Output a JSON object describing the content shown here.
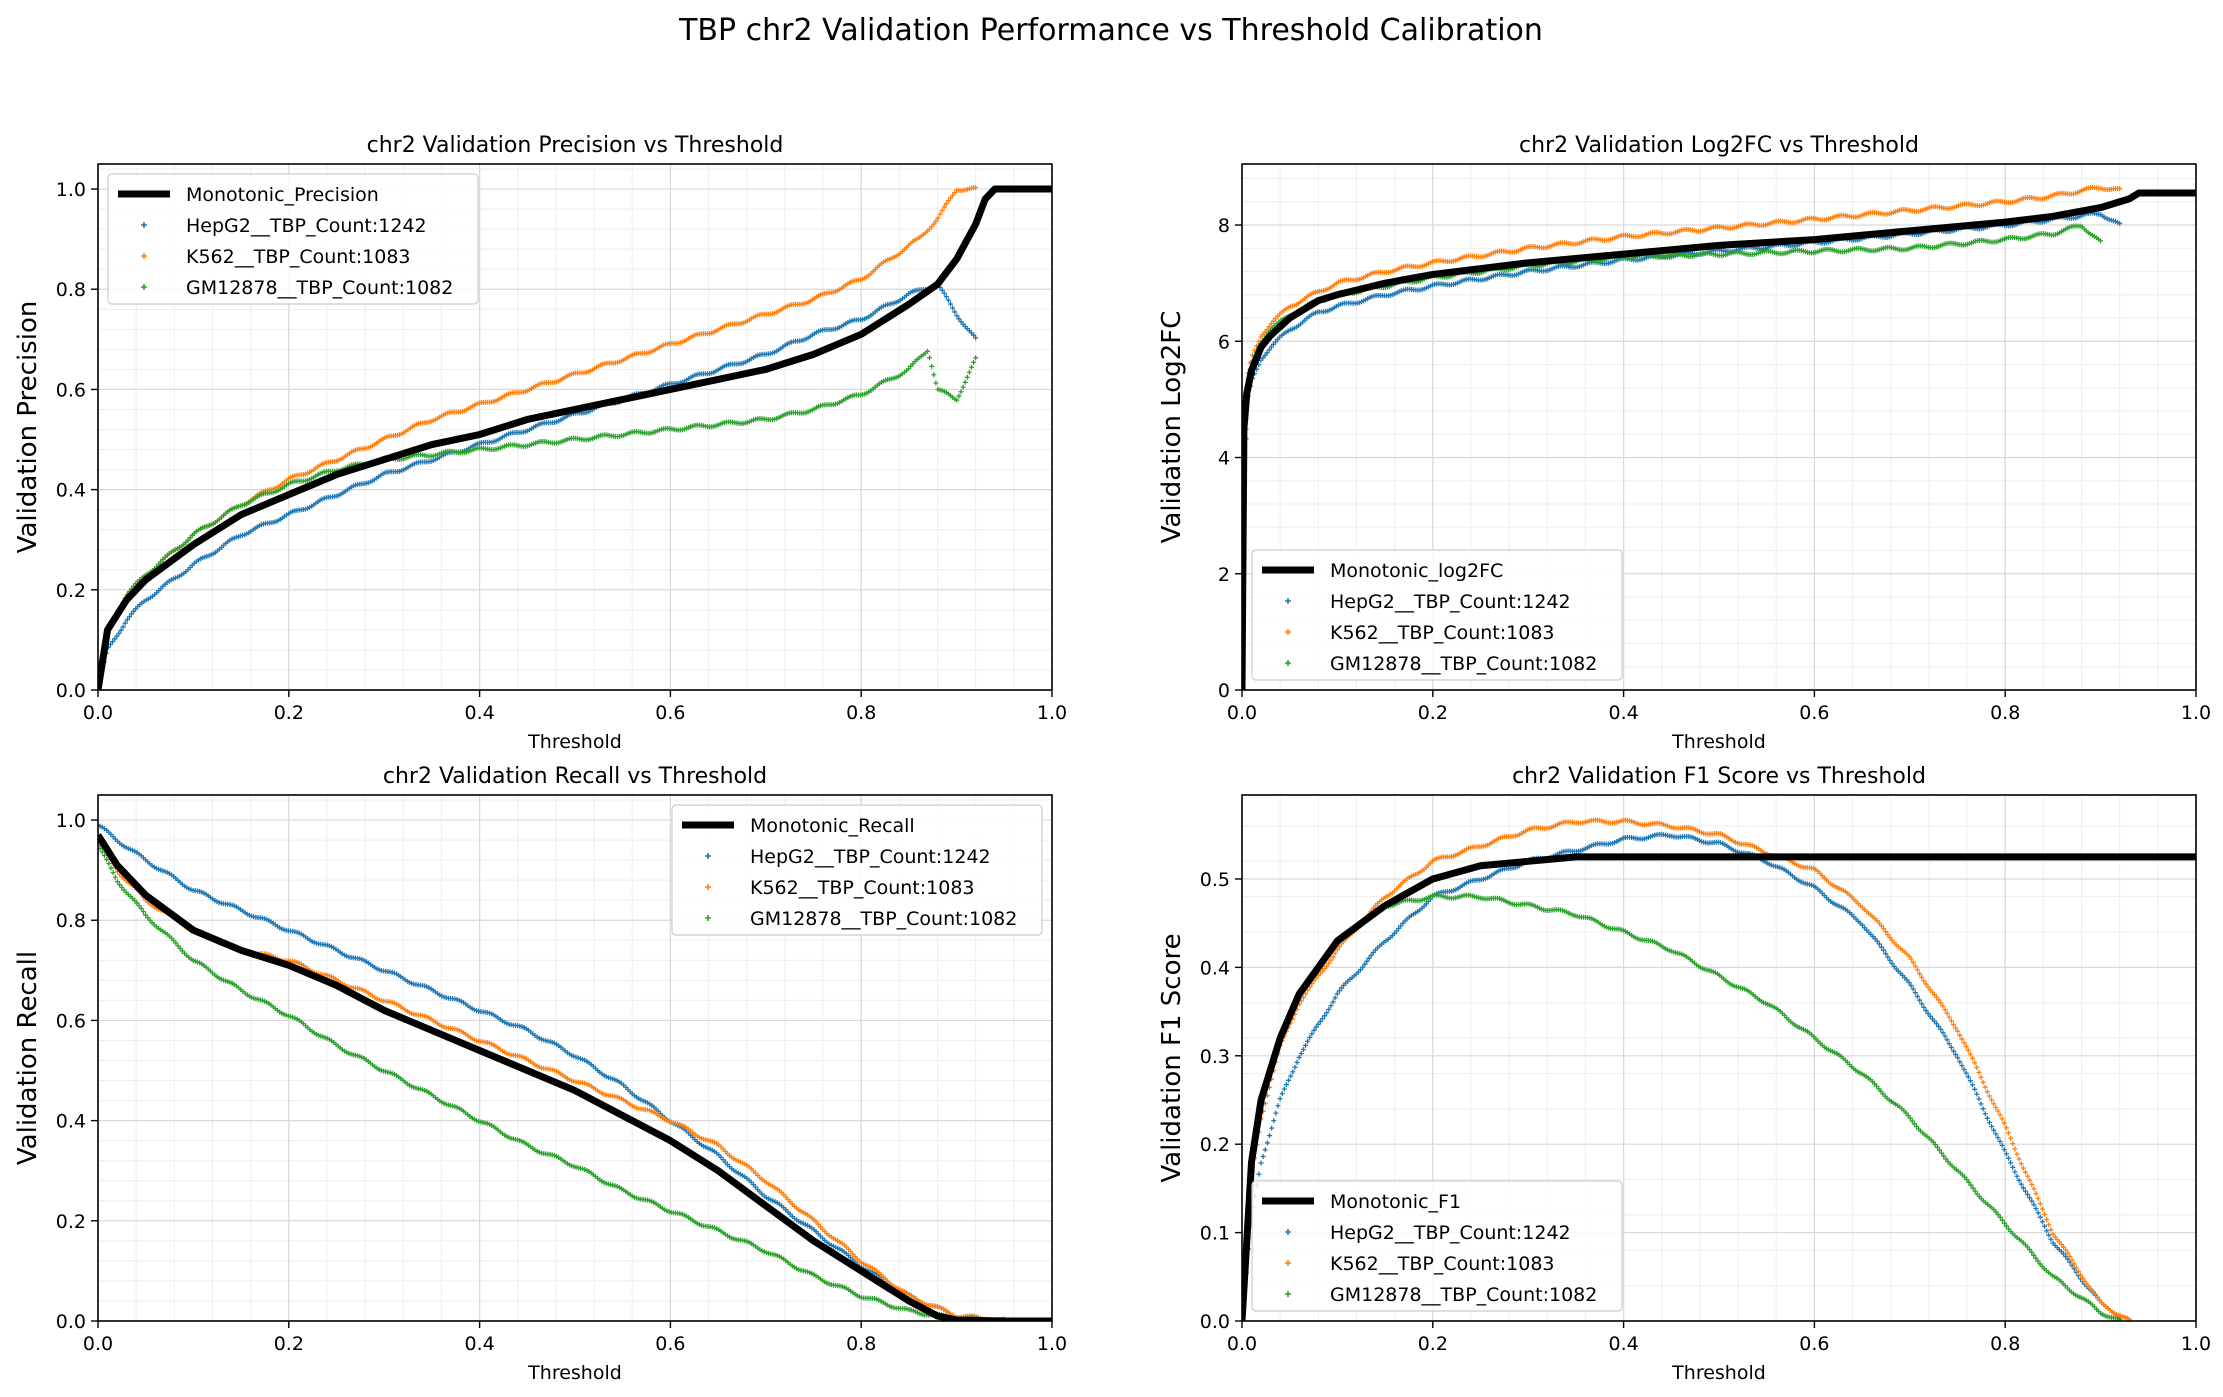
{
  "figure": {
    "suptitle": "TBP chr2 Validation Performance vs Threshold Calibration"
  },
  "colors": {
    "monotonic": "#000000",
    "HepG2": "#1f77b4",
    "K562": "#ff7f0e",
    "GM12878": "#2ca02c",
    "grid": "#d9d9d9",
    "minor_grid": "#eeeeee"
  },
  "chart_data": [
    {
      "type": "scatter",
      "title": "chr2 Validation Precision vs Threshold",
      "xlabel": "Threshold",
      "ylabel": "Validation Precision",
      "xlim": [
        0,
        1
      ],
      "ylim": [
        0,
        1.05
      ],
      "xticks": [
        "0.0",
        "0.2",
        "0.4",
        "0.6",
        "0.8",
        "1.0"
      ],
      "yticks": [
        "0.0",
        "0.2",
        "0.4",
        "0.6",
        "0.8",
        "1.0"
      ],
      "grid": true,
      "legend_position": "upper-left",
      "monotonic": {
        "name": "Monotonic_Precision",
        "x": [
          0,
          0.01,
          0.03,
          0.05,
          0.1,
          0.15,
          0.2,
          0.25,
          0.3,
          0.35,
          0.4,
          0.45,
          0.5,
          0.55,
          0.6,
          0.65,
          0.7,
          0.75,
          0.8,
          0.85,
          0.88,
          0.9,
          0.92,
          0.93,
          0.94,
          1.0
        ],
        "y": [
          0,
          0.12,
          0.18,
          0.22,
          0.29,
          0.35,
          0.39,
          0.43,
          0.46,
          0.49,
          0.51,
          0.54,
          0.56,
          0.58,
          0.6,
          0.62,
          0.64,
          0.67,
          0.71,
          0.77,
          0.81,
          0.86,
          0.93,
          0.98,
          1.0,
          1.0
        ]
      },
      "series": [
        {
          "name": "HepG2__TBP_Count:1242",
          "x": [
            0,
            0.01,
            0.03,
            0.05,
            0.1,
            0.15,
            0.2,
            0.25,
            0.3,
            0.35,
            0.4,
            0.45,
            0.5,
            0.55,
            0.6,
            0.65,
            0.7,
            0.75,
            0.8,
            0.85,
            0.88,
            0.9,
            0.92
          ],
          "y": [
            0,
            0.08,
            0.14,
            0.18,
            0.25,
            0.31,
            0.35,
            0.39,
            0.43,
            0.46,
            0.49,
            0.52,
            0.55,
            0.58,
            0.61,
            0.64,
            0.67,
            0.71,
            0.74,
            0.79,
            0.81,
            0.75,
            0.7
          ]
        },
        {
          "name": "K562__TBP_Count:1083",
          "x": [
            0,
            0.01,
            0.03,
            0.05,
            0.1,
            0.15,
            0.2,
            0.25,
            0.3,
            0.35,
            0.4,
            0.45,
            0.5,
            0.55,
            0.6,
            0.65,
            0.7,
            0.75,
            0.8,
            0.83,
            0.86,
            0.88,
            0.9,
            0.92
          ],
          "y": [
            0,
            0.12,
            0.19,
            0.23,
            0.31,
            0.37,
            0.42,
            0.46,
            0.5,
            0.54,
            0.57,
            0.6,
            0.63,
            0.66,
            0.69,
            0.72,
            0.75,
            0.78,
            0.82,
            0.86,
            0.9,
            0.94,
            1.0,
            1.0
          ]
        },
        {
          "name": "GM12878__TBP_Count:1082",
          "x": [
            0,
            0.01,
            0.03,
            0.05,
            0.1,
            0.15,
            0.2,
            0.25,
            0.3,
            0.35,
            0.4,
            0.45,
            0.5,
            0.55,
            0.6,
            0.65,
            0.7,
            0.75,
            0.8,
            0.83,
            0.85,
            0.87,
            0.88,
            0.9,
            0.92
          ],
          "y": [
            0,
            0.12,
            0.19,
            0.23,
            0.31,
            0.37,
            0.41,
            0.44,
            0.46,
            0.47,
            0.48,
            0.49,
            0.5,
            0.51,
            0.52,
            0.53,
            0.54,
            0.56,
            0.59,
            0.62,
            0.64,
            0.68,
            0.6,
            0.58,
            0.66
          ]
        }
      ]
    },
    {
      "type": "scatter",
      "title": "chr2 Validation Log2FC vs Threshold",
      "xlabel": "Threshold",
      "ylabel": "Validation Log2FC",
      "xlim": [
        0,
        1
      ],
      "ylim": [
        0,
        9.05
      ],
      "xticks": [
        "0.0",
        "0.2",
        "0.4",
        "0.6",
        "0.8",
        "1.0"
      ],
      "yticks": [
        "0",
        "2",
        "4",
        "6",
        "8"
      ],
      "grid": true,
      "legend_position": "lower-left",
      "monotonic": {
        "name": "Monotonic_log2FC",
        "x": [
          0,
          0.002,
          0.005,
          0.01,
          0.02,
          0.03,
          0.05,
          0.08,
          0.1,
          0.15,
          0.2,
          0.3,
          0.4,
          0.5,
          0.6,
          0.7,
          0.8,
          0.85,
          0.9,
          0.93,
          0.94,
          1.0
        ],
        "y": [
          0,
          4.5,
          5.1,
          5.5,
          5.9,
          6.1,
          6.4,
          6.7,
          6.8,
          7.0,
          7.15,
          7.35,
          7.5,
          7.65,
          7.75,
          7.9,
          8.05,
          8.15,
          8.3,
          8.45,
          8.55,
          8.55
        ]
      },
      "series": [
        {
          "name": "HepG2__TBP_Count:1242",
          "x": [
            0,
            0.005,
            0.01,
            0.02,
            0.03,
            0.05,
            0.08,
            0.1,
            0.15,
            0.2,
            0.3,
            0.4,
            0.5,
            0.6,
            0.7,
            0.8,
            0.85,
            0.9,
            0.92
          ],
          "y": [
            0,
            4.9,
            5.3,
            5.7,
            5.9,
            6.2,
            6.5,
            6.6,
            6.8,
            6.95,
            7.2,
            7.4,
            7.55,
            7.7,
            7.85,
            8.0,
            8.1,
            8.2,
            8.0
          ]
        },
        {
          "name": "K562__TBP_Count:1083",
          "x": [
            0,
            0.005,
            0.01,
            0.02,
            0.03,
            0.05,
            0.08,
            0.1,
            0.15,
            0.2,
            0.3,
            0.4,
            0.5,
            0.6,
            0.7,
            0.8,
            0.85,
            0.9,
            0.92
          ],
          "y": [
            0,
            5.3,
            5.7,
            6.1,
            6.3,
            6.6,
            6.85,
            7.0,
            7.2,
            7.35,
            7.6,
            7.8,
            7.95,
            8.1,
            8.25,
            8.4,
            8.5,
            8.65,
            8.6
          ]
        },
        {
          "name": "GM12878__TBP_Count:1082",
          "x": [
            0,
            0.005,
            0.01,
            0.02,
            0.03,
            0.05,
            0.08,
            0.1,
            0.15,
            0.2,
            0.3,
            0.4,
            0.5,
            0.6,
            0.7,
            0.8,
            0.85,
            0.88,
            0.9
          ],
          "y": [
            0,
            5.2,
            5.6,
            6.0,
            6.2,
            6.45,
            6.7,
            6.8,
            6.95,
            7.1,
            7.3,
            7.45,
            7.5,
            7.55,
            7.6,
            7.75,
            7.85,
            8.0,
            7.7
          ]
        }
      ]
    },
    {
      "type": "scatter",
      "title": "chr2 Validation Recall vs Threshold",
      "xlabel": "Threshold",
      "ylabel": "Validation Recall",
      "xlim": [
        0,
        1
      ],
      "ylim": [
        0,
        1.05
      ],
      "xticks": [
        "0.0",
        "0.2",
        "0.4",
        "0.6",
        "0.8",
        "1.0"
      ],
      "yticks": [
        "0.0",
        "0.2",
        "0.4",
        "0.6",
        "0.8",
        "1.0"
      ],
      "grid": true,
      "legend_position": "upper-right",
      "monotonic": {
        "name": "Monotonic_Recall",
        "x": [
          0,
          0.02,
          0.05,
          0.1,
          0.15,
          0.2,
          0.25,
          0.3,
          0.35,
          0.4,
          0.45,
          0.5,
          0.55,
          0.6,
          0.65,
          0.7,
          0.75,
          0.8,
          0.85,
          0.88,
          0.9,
          0.95,
          1.0
        ],
        "y": [
          0.97,
          0.91,
          0.85,
          0.78,
          0.74,
          0.71,
          0.67,
          0.62,
          0.58,
          0.54,
          0.5,
          0.46,
          0.41,
          0.36,
          0.3,
          0.23,
          0.16,
          0.1,
          0.04,
          0.01,
          0.002,
          0.0,
          0.0
        ]
      },
      "series": [
        {
          "name": "HepG2__TBP_Count:1242",
          "x": [
            0,
            0.02,
            0.05,
            0.1,
            0.15,
            0.2,
            0.25,
            0.3,
            0.35,
            0.4,
            0.45,
            0.5,
            0.55,
            0.6,
            0.65,
            0.7,
            0.75,
            0.8,
            0.85,
            0.9,
            0.95
          ],
          "y": [
            0.99,
            0.96,
            0.92,
            0.86,
            0.82,
            0.78,
            0.74,
            0.7,
            0.66,
            0.62,
            0.58,
            0.53,
            0.47,
            0.4,
            0.33,
            0.25,
            0.18,
            0.11,
            0.05,
            0.01,
            0.0
          ]
        },
        {
          "name": "K562__TBP_Count:1083",
          "x": [
            0,
            0.02,
            0.05,
            0.1,
            0.15,
            0.2,
            0.25,
            0.3,
            0.35,
            0.4,
            0.45,
            0.5,
            0.55,
            0.6,
            0.65,
            0.7,
            0.75,
            0.8,
            0.85,
            0.9,
            0.95
          ],
          "y": [
            0.96,
            0.9,
            0.84,
            0.78,
            0.74,
            0.72,
            0.68,
            0.64,
            0.6,
            0.56,
            0.52,
            0.48,
            0.44,
            0.4,
            0.35,
            0.28,
            0.2,
            0.12,
            0.05,
            0.01,
            0.0
          ]
        },
        {
          "name": "GM12878__TBP_Count:1082",
          "x": [
            0,
            0.02,
            0.05,
            0.1,
            0.15,
            0.2,
            0.25,
            0.3,
            0.35,
            0.4,
            0.45,
            0.5,
            0.55,
            0.6,
            0.65,
            0.7,
            0.75,
            0.8,
            0.85,
            0.9,
            0.95
          ],
          "y": [
            0.95,
            0.88,
            0.81,
            0.72,
            0.66,
            0.61,
            0.55,
            0.5,
            0.45,
            0.4,
            0.35,
            0.31,
            0.26,
            0.22,
            0.18,
            0.14,
            0.09,
            0.05,
            0.02,
            0.005,
            0.0
          ]
        }
      ]
    },
    {
      "type": "scatter",
      "title": "chr2 Validation F1 Score vs Threshold",
      "xlabel": "Threshold",
      "ylabel": "Validation F1 Score",
      "xlim": [
        0,
        1
      ],
      "ylim": [
        0,
        0.595
      ],
      "xticks": [
        "0.0",
        "0.2",
        "0.4",
        "0.6",
        "0.8",
        "1.0"
      ],
      "yticks": [
        "0.0",
        "0.1",
        "0.2",
        "0.3",
        "0.4",
        "0.5"
      ],
      "grid": true,
      "legend_position": "lower-left",
      "monotonic": {
        "name": "Monotonic_F1",
        "x": [
          0,
          0.01,
          0.02,
          0.04,
          0.06,
          0.1,
          0.15,
          0.2,
          0.25,
          0.3,
          0.35,
          1.0
        ],
        "y": [
          0,
          0.18,
          0.25,
          0.32,
          0.37,
          0.43,
          0.47,
          0.5,
          0.515,
          0.52,
          0.525,
          0.525
        ]
      },
      "series": [
        {
          "name": "HepG2__TBP_Count:1242",
          "x": [
            0,
            0.01,
            0.02,
            0.04,
            0.06,
            0.1,
            0.15,
            0.2,
            0.3,
            0.4,
            0.45,
            0.5,
            0.55,
            0.6,
            0.65,
            0.7,
            0.75,
            0.8,
            0.85,
            0.9,
            0.93
          ],
          "y": [
            0,
            0.12,
            0.18,
            0.25,
            0.3,
            0.37,
            0.43,
            0.48,
            0.52,
            0.545,
            0.55,
            0.54,
            0.52,
            0.49,
            0.45,
            0.38,
            0.3,
            0.19,
            0.09,
            0.02,
            0.0
          ]
        },
        {
          "name": "K562__TBP_Count:1083",
          "x": [
            0,
            0.01,
            0.02,
            0.04,
            0.06,
            0.1,
            0.15,
            0.2,
            0.3,
            0.35,
            0.4,
            0.45,
            0.5,
            0.55,
            0.6,
            0.65,
            0.7,
            0.75,
            0.8,
            0.85,
            0.9,
            0.93
          ],
          "y": [
            0,
            0.16,
            0.23,
            0.31,
            0.36,
            0.42,
            0.48,
            0.52,
            0.555,
            0.565,
            0.565,
            0.56,
            0.55,
            0.53,
            0.51,
            0.47,
            0.41,
            0.33,
            0.22,
            0.1,
            0.02,
            0.0
          ]
        },
        {
          "name": "GM12878__TBP_Count:1082",
          "x": [
            0,
            0.01,
            0.02,
            0.04,
            0.06,
            0.1,
            0.15,
            0.2,
            0.25,
            0.3,
            0.35,
            0.4,
            0.45,
            0.5,
            0.55,
            0.6,
            0.65,
            0.7,
            0.75,
            0.8,
            0.85,
            0.9,
            0.92
          ],
          "y": [
            0,
            0.17,
            0.24,
            0.32,
            0.37,
            0.43,
            0.47,
            0.48,
            0.48,
            0.47,
            0.46,
            0.44,
            0.42,
            0.39,
            0.36,
            0.32,
            0.28,
            0.23,
            0.17,
            0.11,
            0.05,
            0.01,
            0.0
          ]
        }
      ]
    }
  ]
}
